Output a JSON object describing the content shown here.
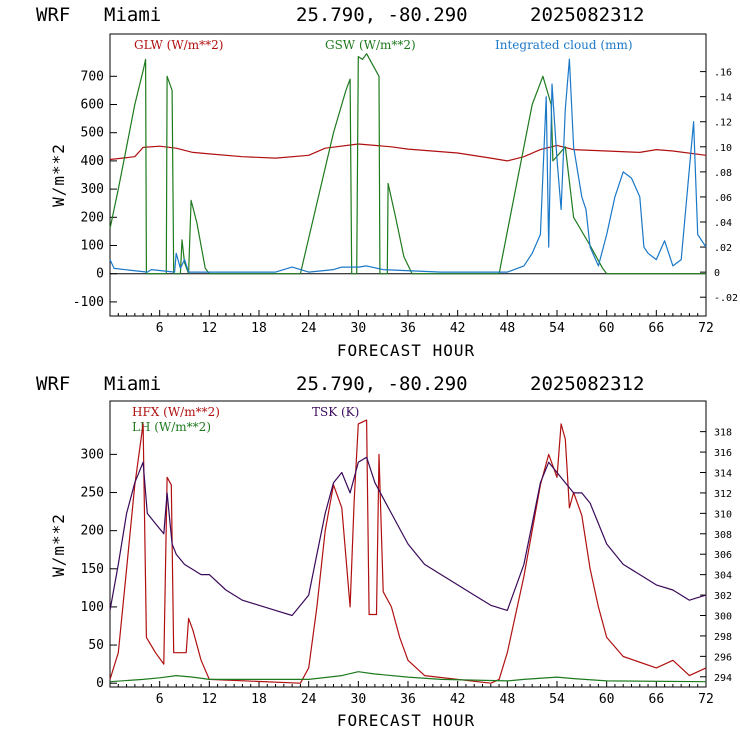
{
  "charts": [
    {
      "header": {
        "model": "WRF",
        "location": "Miami",
        "coords": "25.790, -80.290",
        "init": "2025082312"
      },
      "xlabel": "FORECAST HOUR",
      "ylabel": "W/m**2",
      "xticks": [
        "6",
        "12",
        "18",
        "24",
        "30",
        "36",
        "42",
        "48",
        "54",
        "60",
        "66",
        "72"
      ],
      "yticks": [
        "-100",
        "0",
        "100",
        "200",
        "300",
        "400",
        "500",
        "600",
        "700"
      ],
      "rticks": [
        "-.02",
        "0",
        ".02",
        ".04",
        ".06",
        ".08",
        ".10",
        ".12",
        ".14",
        ".16"
      ],
      "legend": {
        "s1": "GLW (W/m**2)",
        "s1_color": "#b01010",
        "s2": "GSW (W/m**2)",
        "s2_color": "#1e7a1e",
        "s3": "Integrated cloud (mm)",
        "s3_color": "#1a78c8"
      }
    },
    {
      "header": {
        "model": "WRF",
        "location": "Miami",
        "coords": "25.790, -80.290",
        "init": "2025082312"
      },
      "xlabel": "FORECAST HOUR",
      "ylabel": "W/m**2",
      "xticks": [
        "6",
        "12",
        "18",
        "24",
        "30",
        "36",
        "42",
        "48",
        "54",
        "60",
        "66",
        "72"
      ],
      "yticks": [
        "0",
        "50",
        "100",
        "150",
        "200",
        "250",
        "300"
      ],
      "rticks": [
        "294",
        "296",
        "298",
        "300",
        "302",
        "304",
        "306",
        "308",
        "310",
        "312",
        "314",
        "316",
        "318"
      ],
      "legend": {
        "s1": "HFX (W/m**2)",
        "s1_color": "#b01010",
        "s2": "LH  (W/m**2)",
        "s2_color": "#1e7a1e",
        "s3": "TSK (K)",
        "s3_color": "#3a0a5a"
      }
    }
  ],
  "chart_data": [
    {
      "type": "line",
      "x_range": [
        0,
        72
      ],
      "ylim": [
        -150,
        850
      ],
      "y2lim": [
        -0.035,
        0.19
      ],
      "series": [
        {
          "name": "GLW (W/m**2)",
          "axis": "left",
          "color": "#b01010",
          "points": [
            [
              0,
              405
            ],
            [
              3,
              415
            ],
            [
              4,
              448
            ],
            [
              6,
              452
            ],
            [
              8,
              445
            ],
            [
              10,
              430
            ],
            [
              12,
              425
            ],
            [
              16,
              415
            ],
            [
              20,
              410
            ],
            [
              24,
              420
            ],
            [
              26,
              445
            ],
            [
              30,
              460
            ],
            [
              34,
              450
            ],
            [
              36,
              442
            ],
            [
              42,
              428
            ],
            [
              46,
              410
            ],
            [
              48,
              400
            ],
            [
              50,
              415
            ],
            [
              52,
              440
            ],
            [
              54,
              455
            ],
            [
              56,
              440
            ],
            [
              60,
              435
            ],
            [
              64,
              430
            ],
            [
              66,
              440
            ],
            [
              68,
              435
            ],
            [
              72,
              420
            ]
          ]
        },
        {
          "name": "GSW (W/m**2)",
          "axis": "left",
          "color": "#1e7a1e",
          "points": [
            [
              0,
              160
            ],
            [
              1,
              300
            ],
            [
              2,
              450
            ],
            [
              3,
              600
            ],
            [
              4,
              720
            ],
            [
              4.3,
              760
            ],
            [
              4.4,
              0
            ],
            [
              6.8,
              0
            ],
            [
              6.9,
              700
            ],
            [
              7.5,
              650
            ],
            [
              7.7,
              0
            ],
            [
              8.5,
              0
            ],
            [
              8.7,
              120
            ],
            [
              9,
              40
            ],
            [
              9.5,
              0
            ],
            [
              9.8,
              260
            ],
            [
              10.5,
              180
            ],
            [
              11.5,
              20
            ],
            [
              12,
              0
            ],
            [
              23,
              0
            ],
            [
              25,
              250
            ],
            [
              27,
              500
            ],
            [
              28.5,
              650
            ],
            [
              29,
              690
            ],
            [
              29.2,
              0
            ],
            [
              29.8,
              0
            ],
            [
              30,
              770
            ],
            [
              30.5,
              760
            ],
            [
              31,
              780
            ],
            [
              32.5,
              700
            ],
            [
              32.6,
              0
            ],
            [
              33.5,
              0
            ],
            [
              33.6,
              320
            ],
            [
              34.5,
              200
            ],
            [
              35.5,
              60
            ],
            [
              36.5,
              0
            ],
            [
              47,
              0
            ],
            [
              49,
              300
            ],
            [
              51,
              600
            ],
            [
              52.3,
              700
            ],
            [
              53.3,
              600
            ],
            [
              53.5,
              400
            ],
            [
              55,
              450
            ],
            [
              56,
              200
            ],
            [
              58,
              100
            ],
            [
              59.5,
              20
            ],
            [
              60,
              0
            ],
            [
              72,
              0
            ]
          ]
        },
        {
          "name": "Integrated cloud (mm)",
          "axis": "right",
          "color": "#1a78c8",
          "points": [
            [
              0,
              0.01
            ],
            [
              0.5,
              0.003
            ],
            [
              4.5,
              0
            ],
            [
              5,
              0.002
            ],
            [
              7.8,
              0
            ],
            [
              8,
              0.015
            ],
            [
              8.5,
              0.003
            ],
            [
              9,
              0.01
            ],
            [
              9.5,
              0
            ],
            [
              20,
              0
            ],
            [
              22,
              0.004
            ],
            [
              24,
              0
            ],
            [
              27,
              0.002
            ],
            [
              28,
              0.004
            ],
            [
              30,
              0.004
            ],
            [
              31,
              0.005
            ],
            [
              33,
              0.002
            ],
            [
              40,
              0
            ],
            [
              48,
              0
            ],
            [
              50,
              0.005
            ],
            [
              51,
              0.015
            ],
            [
              52,
              0.03
            ],
            [
              52.7,
              0.14
            ],
            [
              53,
              0.02
            ],
            [
              53.4,
              0.15
            ],
            [
              54,
              0.09
            ],
            [
              54.5,
              0.05
            ],
            [
              55,
              0.13
            ],
            [
              55.5,
              0.17
            ],
            [
              56,
              0.1
            ],
            [
              56.5,
              0.08
            ],
            [
              57,
              0.06
            ],
            [
              57.5,
              0.05
            ],
            [
              58,
              0.02
            ],
            [
              59,
              0.005
            ],
            [
              60,
              0.03
            ],
            [
              61,
              0.06
            ],
            [
              62,
              0.08
            ],
            [
              63,
              0.075
            ],
            [
              64,
              0.06
            ],
            [
              64.5,
              0.02
            ],
            [
              65,
              0.015
            ],
            [
              66,
              0.01
            ],
            [
              67,
              0.025
            ],
            [
              68,
              0.005
            ],
            [
              69,
              0.01
            ],
            [
              70.5,
              0.12
            ],
            [
              71,
              0.03
            ],
            [
              72,
              0.02
            ]
          ]
        }
      ]
    },
    {
      "type": "line",
      "x_range": [
        0,
        72
      ],
      "ylim": [
        -5,
        370
      ],
      "y2lim": [
        293,
        321
      ],
      "series": [
        {
          "name": "HFX (W/m**2)",
          "axis": "left",
          "color": "#b01010",
          "points": [
            [
              0,
              5
            ],
            [
              1,
              40
            ],
            [
              2,
              150
            ],
            [
              3,
              260
            ],
            [
              4,
              340
            ],
            [
              4.4,
              60
            ],
            [
              5.5,
              40
            ],
            [
              6.5,
              25
            ],
            [
              6.9,
              270
            ],
            [
              7.4,
              260
            ],
            [
              7.7,
              40
            ],
            [
              9.2,
              40
            ],
            [
              9.5,
              85
            ],
            [
              10,
              70
            ],
            [
              11,
              30
            ],
            [
              12,
              5
            ],
            [
              23,
              0
            ],
            [
              24,
              20
            ],
            [
              25,
              100
            ],
            [
              26,
              200
            ],
            [
              27,
              260
            ],
            [
              28,
              230
            ],
            [
              29,
              100
            ],
            [
              29.5,
              240
            ],
            [
              30,
              340
            ],
            [
              31,
              345
            ],
            [
              31.3,
              90
            ],
            [
              32.2,
              90
            ],
            [
              32.5,
              300
            ],
            [
              33,
              120
            ],
            [
              34,
              100
            ],
            [
              35,
              60
            ],
            [
              36,
              30
            ],
            [
              38,
              10
            ],
            [
              46,
              0
            ],
            [
              47,
              5
            ],
            [
              48,
              40
            ],
            [
              50,
              140
            ],
            [
              52,
              260
            ],
            [
              53,
              300
            ],
            [
              54,
              270
            ],
            [
              54.5,
              340
            ],
            [
              55,
              320
            ],
            [
              55.5,
              230
            ],
            [
              56,
              250
            ],
            [
              57,
              220
            ],
            [
              58,
              150
            ],
            [
              59,
              100
            ],
            [
              60,
              60
            ],
            [
              62,
              35
            ],
            [
              66,
              20
            ],
            [
              68,
              30
            ],
            [
              69,
              20
            ],
            [
              70,
              10
            ],
            [
              72,
              20
            ]
          ]
        },
        {
          "name": "LH  (W/m**2)",
          "axis": "left",
          "color": "#1e7a1e",
          "points": [
            [
              0,
              2
            ],
            [
              4,
              5
            ],
            [
              6,
              7
            ],
            [
              8,
              10
            ],
            [
              10,
              8
            ],
            [
              12,
              5
            ],
            [
              24,
              5
            ],
            [
              28,
              10
            ],
            [
              30,
              15
            ],
            [
              32,
              12
            ],
            [
              36,
              8
            ],
            [
              40,
              5
            ],
            [
              48,
              3
            ],
            [
              50,
              5
            ],
            [
              54,
              8
            ],
            [
              56,
              6
            ],
            [
              60,
              3
            ],
            [
              72,
              2
            ]
          ]
        },
        {
          "name": "TSK (K)",
          "axis": "right",
          "color": "#3a0a5a",
          "points": [
            [
              0,
              300.5
            ],
            [
              1,
              305
            ],
            [
              2,
              310
            ],
            [
              3,
              313
            ],
            [
              4,
              315
            ],
            [
              4.5,
              310
            ],
            [
              5.5,
              309
            ],
            [
              6.5,
              308
            ],
            [
              6.9,
              312
            ],
            [
              7.5,
              307
            ],
            [
              8,
              306
            ],
            [
              9,
              305
            ],
            [
              10,
              304.5
            ],
            [
              11,
              304
            ],
            [
              12,
              304
            ],
            [
              14,
              302.5
            ],
            [
              16,
              301.5
            ],
            [
              18,
              301
            ],
            [
              20,
              300.5
            ],
            [
              22,
              300
            ],
            [
              24,
              302
            ],
            [
              25,
              306
            ],
            [
              26,
              310
            ],
            [
              27,
              313
            ],
            [
              28,
              314
            ],
            [
              29,
              312
            ],
            [
              30,
              315
            ],
            [
              31,
              315.5
            ],
            [
              32,
              313
            ],
            [
              34,
              310
            ],
            [
              36,
              307
            ],
            [
              38,
              305
            ],
            [
              40,
              304
            ],
            [
              42,
              303
            ],
            [
              44,
              302
            ],
            [
              46,
              301
            ],
            [
              48,
              300.5
            ],
            [
              50,
              305
            ],
            [
              51,
              309
            ],
            [
              52,
              313
            ],
            [
              53,
              315
            ],
            [
              54,
              314
            ],
            [
              55,
              313
            ],
            [
              56,
              312
            ],
            [
              57,
              312
            ],
            [
              58,
              311
            ],
            [
              60,
              307
            ],
            [
              62,
              305
            ],
            [
              64,
              304
            ],
            [
              66,
              303
            ],
            [
              68,
              302.5
            ],
            [
              70,
              301.5
            ],
            [
              72,
              302
            ]
          ]
        }
      ]
    }
  ]
}
